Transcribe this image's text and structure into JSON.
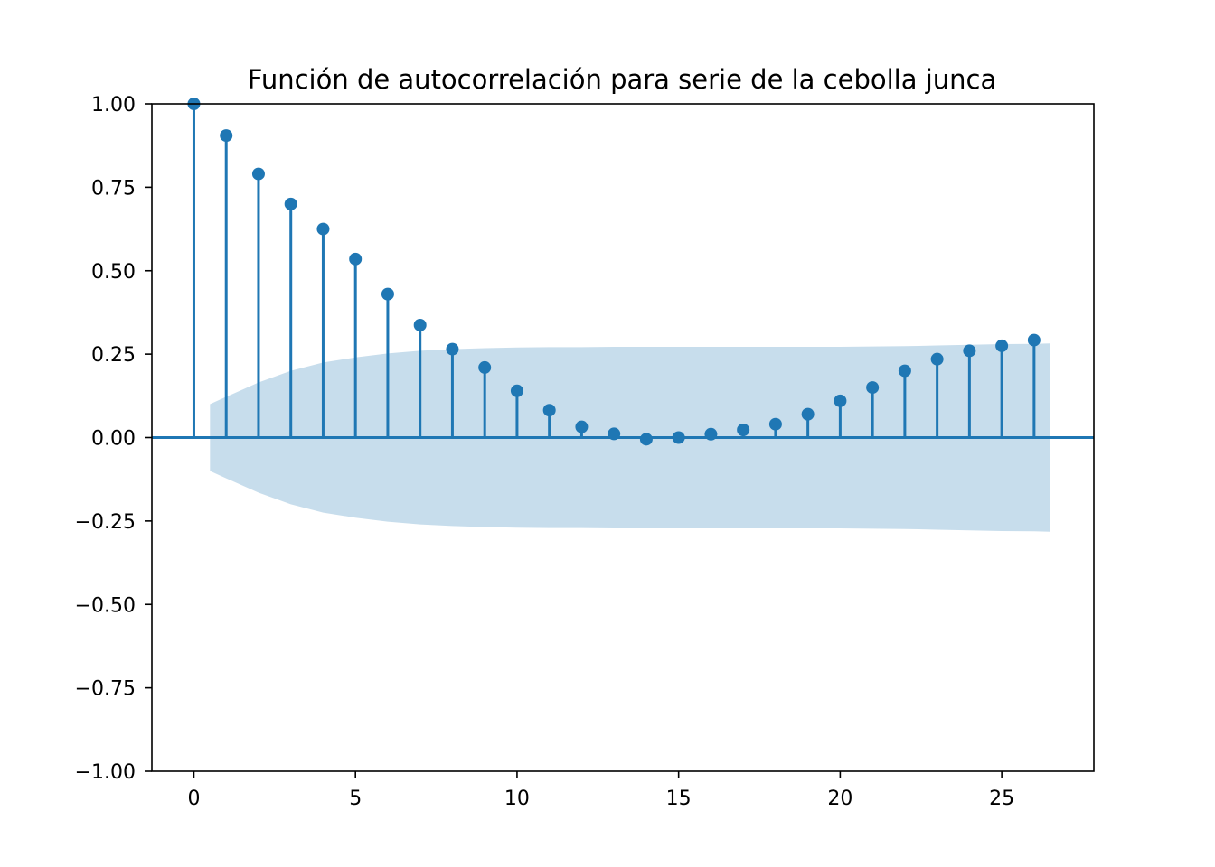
{
  "chart_data": {
    "type": "stem",
    "title": "Función de autocorrelación para serie de la cebolla junca",
    "xlabel": "",
    "ylabel": "",
    "xlim": [
      -1.3,
      27.85
    ],
    "ylim": [
      -1.0,
      1.0
    ],
    "xticks": [
      0,
      5,
      10,
      15,
      20,
      25
    ],
    "xtick_labels": [
      "0",
      "5",
      "10",
      "15",
      "20",
      "25"
    ],
    "yticks": [
      1.0,
      0.75,
      0.5,
      0.25,
      0.0,
      -0.25,
      -0.5,
      -0.75,
      -1.0
    ],
    "ytick_labels": [
      "1.00",
      "0.75",
      "0.50",
      "0.25",
      "0.00",
      "−0.25",
      "−0.50",
      "−0.75",
      "−1.00"
    ],
    "grid": false,
    "lags": [
      0,
      1,
      2,
      3,
      4,
      5,
      6,
      7,
      8,
      9,
      10,
      11,
      12,
      13,
      14,
      15,
      16,
      17,
      18,
      19,
      20,
      21,
      22,
      23,
      24,
      25,
      26
    ],
    "values": [
      1.0,
      0.905,
      0.79,
      0.7,
      0.625,
      0.535,
      0.43,
      0.337,
      0.265,
      0.21,
      0.14,
      0.082,
      0.032,
      0.011,
      -0.005,
      0.0,
      0.01,
      0.023,
      0.04,
      0.07,
      0.11,
      0.15,
      0.2,
      0.235,
      0.26,
      0.275,
      0.292
    ],
    "confidence_band": {
      "x": [
        0.5,
        1,
        2,
        3,
        4,
        5,
        6,
        7,
        8,
        9,
        10,
        11,
        12,
        13,
        14,
        15,
        16,
        17,
        18,
        19,
        20,
        21,
        22,
        23,
        24,
        25,
        26,
        26.5
      ],
      "upper": [
        0.1,
        0.122,
        0.165,
        0.2,
        0.225,
        0.24,
        0.252,
        0.26,
        0.265,
        0.268,
        0.27,
        0.271,
        0.271,
        0.272,
        0.272,
        0.272,
        0.272,
        0.272,
        0.272,
        0.272,
        0.272,
        0.273,
        0.274,
        0.276,
        0.278,
        0.28,
        0.281,
        0.282
      ],
      "lower": [
        -0.1,
        -0.122,
        -0.165,
        -0.2,
        -0.225,
        -0.24,
        -0.252,
        -0.26,
        -0.265,
        -0.268,
        -0.27,
        -0.271,
        -0.271,
        -0.272,
        -0.272,
        -0.272,
        -0.272,
        -0.272,
        -0.272,
        -0.272,
        -0.272,
        -0.273,
        -0.274,
        -0.276,
        -0.278,
        -0.28,
        -0.281,
        -0.282
      ]
    },
    "colors": {
      "stem": "#1f77b4",
      "marker": "#1f77b4",
      "band": "#1f77b4",
      "axis": "#000000"
    }
  }
}
